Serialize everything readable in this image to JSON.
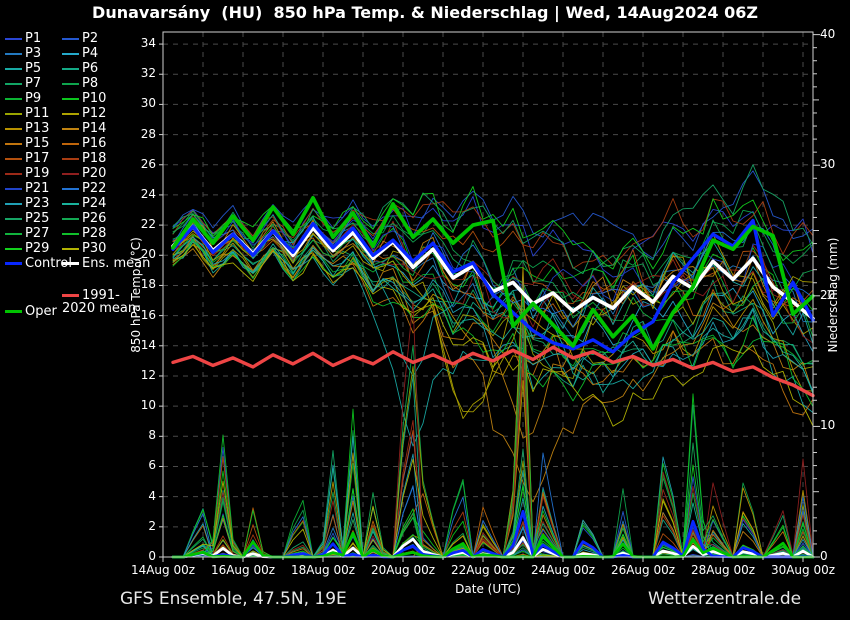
{
  "title": "Dunavarsány  (HU)  850 hPa Temp. & Niederschlag | Wed, 14Aug2024 06Z",
  "footer": {
    "left": "GFS Ensemble, 47.5N, 19E",
    "right": "Wetterzentrale.de"
  },
  "legend": {
    "members": [
      {
        "label": "P1",
        "color": "#2a46d4"
      },
      {
        "label": "P2",
        "color": "#2558cf"
      },
      {
        "label": "P3",
        "color": "#2379c0"
      },
      {
        "label": "P4",
        "color": "#25aacb"
      },
      {
        "label": "P5",
        "color": "#18aaa4"
      },
      {
        "label": "P6",
        "color": "#14aa86"
      },
      {
        "label": "P7",
        "color": "#12a565"
      },
      {
        "label": "P8",
        "color": "#0ea44d"
      },
      {
        "label": "P9",
        "color": "#0cb434"
      },
      {
        "label": "P10",
        "color": "#0cc61e"
      },
      {
        "label": "P11",
        "color": "#9aa500"
      },
      {
        "label": "P12",
        "color": "#aea300"
      },
      {
        "label": "P13",
        "color": "#b89200"
      },
      {
        "label": "P14",
        "color": "#c08311"
      },
      {
        "label": "P15",
        "color": "#c1750e"
      },
      {
        "label": "P16",
        "color": "#bf650b"
      },
      {
        "label": "P17",
        "color": "#b4510e"
      },
      {
        "label": "P18",
        "color": "#a93d12"
      },
      {
        "label": "P19",
        "color": "#9c2a18"
      },
      {
        "label": "P20",
        "color": "#8f1f1f"
      },
      {
        "label": "P21",
        "color": "#2144c9"
      },
      {
        "label": "P22",
        "color": "#2373d3"
      },
      {
        "label": "P23",
        "color": "#20a0b5"
      },
      {
        "label": "P24",
        "color": "#19b29c"
      },
      {
        "label": "P25",
        "color": "#17a566"
      },
      {
        "label": "P26",
        "color": "#13a953"
      },
      {
        "label": "P27",
        "color": "#11b33d"
      },
      {
        "label": "P28",
        "color": "#10bf2b"
      },
      {
        "label": "P29",
        "color": "#13d11d"
      },
      {
        "label": "P30",
        "color": "#b2b303"
      }
    ],
    "specials": [
      {
        "label": "Control",
        "color": "#0827ff",
        "col": 0,
        "row": 15
      },
      {
        "label": "Ens. mean",
        "color": "#ffffff",
        "col": 1,
        "row": 15
      },
      {
        "label": "1991-2020 mean",
        "color": "#ee4545",
        "col": 1,
        "row": 17.2,
        "wrap": true
      },
      {
        "label": "Oper",
        "color": "#00c300",
        "col": 0,
        "row": 18.2
      }
    ]
  },
  "axes": {
    "x": {
      "label": "Date (UTC)",
      "tick_labels": [
        "14Aug 00z",
        "16Aug 00z",
        "18Aug 00z",
        "20Aug 00z",
        "22Aug 00z",
        "24Aug 00z",
        "26Aug 00z",
        "28Aug 00z",
        "30Aug 00z"
      ],
      "tick_days": [
        0,
        2,
        4,
        6,
        8,
        10,
        12,
        14,
        16
      ],
      "range_days": [
        0,
        16.25
      ]
    },
    "temp": {
      "label": "850 hPa Temp. (°C)",
      "ticks": [
        0,
        2,
        4,
        6,
        8,
        10,
        12,
        14,
        16,
        18,
        20,
        22,
        24,
        26,
        28,
        30,
        32,
        34
      ],
      "range": [
        0,
        34.8
      ]
    },
    "precip": {
      "label": "Niederschlag (mm)",
      "ticks": [
        0,
        10,
        20,
        30,
        40
      ],
      "range": [
        0,
        40.2
      ]
    }
  },
  "chart_data": {
    "type": "line",
    "title": "Dunavarsány (HU) 850 hPa Temp. & Niederschlag | Wed, 14Aug2024 06Z",
    "xlabel": "Date (UTC)",
    "ylabel_left": "850 hPa Temp. (°C)",
    "ylabel_right": "Niederschlag (mm)",
    "x_days": [
      0.25,
      0.75,
      1.25,
      1.75,
      2.25,
      2.75,
      3.25,
      3.75,
      4.25,
      4.75,
      5.25,
      5.75,
      6.25,
      6.75,
      7.25,
      7.75,
      8.25,
      8.75,
      9.25,
      9.75,
      10.25,
      10.75,
      11.25,
      11.75,
      12.25,
      12.75,
      13.25,
      13.75,
      14.25,
      14.75,
      15.25,
      15.75,
      16.25
    ],
    "series": [
      {
        "name": "Ens. mean",
        "color": "#ffffff",
        "width": 3.6,
        "values": [
          20.6,
          21.9,
          20.3,
          21.4,
          20.1,
          21.6,
          20.0,
          21.8,
          20.3,
          21.5,
          19.8,
          20.9,
          19.2,
          20.4,
          18.5,
          19.3,
          17.6,
          18.2,
          16.8,
          17.5,
          16.3,
          17.2,
          16.5,
          17.9,
          16.9,
          18.6,
          17.8,
          19.6,
          18.4,
          19.8,
          17.9,
          16.9,
          15.8
        ]
      },
      {
        "name": "Control",
        "color": "#0827ff",
        "width": 3.4,
        "values": [
          20.4,
          21.9,
          20.2,
          21.4,
          20.0,
          21.6,
          20.2,
          22.1,
          20.5,
          21.8,
          20.0,
          21.0,
          19.6,
          20.8,
          18.9,
          19.5,
          17.4,
          16.2,
          15.0,
          14.2,
          13.8,
          14.4,
          13.6,
          14.8,
          15.6,
          18.2,
          19.8,
          21.4,
          20.6,
          22.3,
          16.0,
          18.2,
          15.7
        ]
      },
      {
        "name": "Oper",
        "color": "#00c300",
        "width": 3.8,
        "values": [
          20.5,
          22.4,
          20.8,
          22.6,
          21.0,
          23.2,
          21.4,
          23.8,
          21.2,
          22.8,
          20.6,
          23.4,
          21.2,
          22.4,
          20.8,
          22.0,
          22.3,
          15.3,
          16.8,
          15.4,
          14.0,
          16.4,
          14.6,
          16.0,
          13.8,
          16.2,
          17.9,
          21.0,
          20.4,
          21.9,
          21.3,
          16.1,
          17.3
        ]
      },
      {
        "name": "1991-2020 mean",
        "color": "#ee4545",
        "width": 3.4,
        "values": [
          12.9,
          13.3,
          12.7,
          13.2,
          12.6,
          13.4,
          12.8,
          13.5,
          12.7,
          13.3,
          12.8,
          13.6,
          12.9,
          13.4,
          12.8,
          13.5,
          13.0,
          13.7,
          13.1,
          13.9,
          13.2,
          13.6,
          12.9,
          13.3,
          12.7,
          13.1,
          12.5,
          12.9,
          12.3,
          12.6,
          11.9,
          11.4,
          10.7
        ]
      }
    ],
    "members_synthesis": {
      "count": 30,
      "time_step_days": 0.25,
      "spread_schedule": [
        [
          0,
          1.3
        ],
        [
          4,
          1.6
        ],
        [
          6,
          3.2
        ],
        [
          8,
          4.8
        ],
        [
          11,
          5.2
        ],
        [
          14,
          4.6
        ],
        [
          16.25,
          5.8
        ]
      ],
      "ar_coeff": 0.72,
      "member_dips": [
        {
          "member": 11,
          "d": 7.6,
          "w": 0.9,
          "amp": -10
        },
        {
          "member": 13,
          "d": 9.2,
          "w": 1.0,
          "amp": -9
        },
        {
          "member": 4,
          "d": 6.2,
          "w": 0.7,
          "amp": -8
        }
      ]
    },
    "precip_events": [
      {
        "d": 0.9,
        "w": 0.14,
        "amp": 6
      },
      {
        "d": 1.5,
        "w": 0.18,
        "amp": 9
      },
      {
        "d": 2.3,
        "w": 0.13,
        "amp": 4
      },
      {
        "d": 3.4,
        "w": 0.16,
        "amp": 5
      },
      {
        "d": 4.2,
        "w": 0.14,
        "amp": 8
      },
      {
        "d": 4.7,
        "w": 0.12,
        "amp": 11
      },
      {
        "d": 5.3,
        "w": 0.14,
        "amp": 8
      },
      {
        "d": 6.15,
        "w": 0.16,
        "amp": 27
      },
      {
        "d": 6.6,
        "w": 0.13,
        "amp": 10
      },
      {
        "d": 7.4,
        "w": 0.16,
        "amp": 7
      },
      {
        "d": 8.1,
        "w": 0.13,
        "amp": 6
      },
      {
        "d": 8.95,
        "w": 0.16,
        "amp": 22
      },
      {
        "d": 9.6,
        "w": 0.13,
        "amp": 14
      },
      {
        "d": 10.6,
        "w": 0.16,
        "amp": 5
      },
      {
        "d": 11.5,
        "w": 0.13,
        "amp": 4
      },
      {
        "d": 12.6,
        "w": 0.16,
        "amp": 9
      },
      {
        "d": 13.3,
        "w": 0.16,
        "amp": 12
      },
      {
        "d": 13.85,
        "w": 0.13,
        "amp": 10
      },
      {
        "d": 14.6,
        "w": 0.16,
        "amp": 8
      },
      {
        "d": 15.4,
        "w": 0.13,
        "amp": 7
      },
      {
        "d": 16.0,
        "w": 0.13,
        "amp": 6
      }
    ],
    "grid": {
      "h_step_c": 2,
      "v_step_days": 1,
      "color": "#4a4a4a",
      "dash": "5 5"
    },
    "legend_position": "left"
  }
}
